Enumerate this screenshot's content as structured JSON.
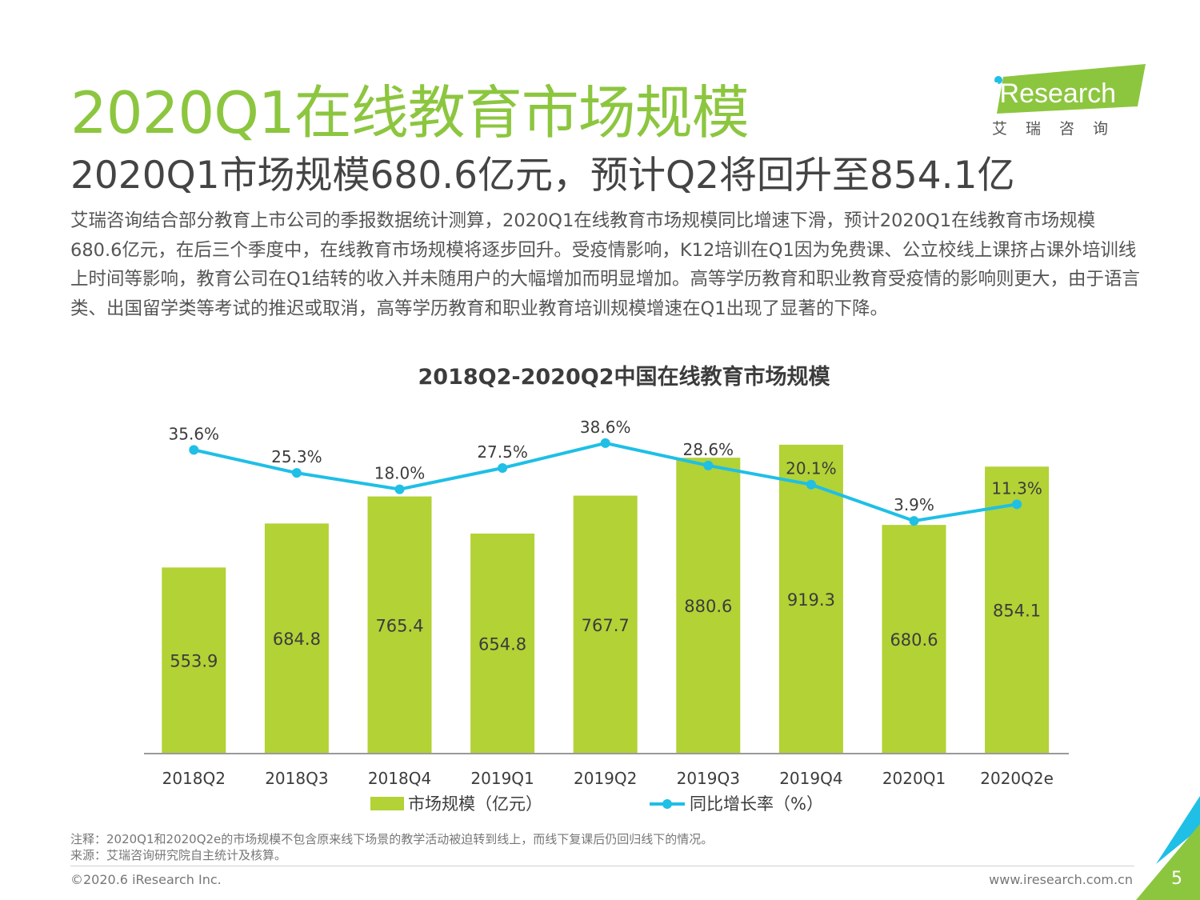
{
  "header": {
    "title": "2020Q1在线教育市场规模",
    "subtitle": "2020Q1市场规模680.6亿元，预计Q2将回升至854.1亿"
  },
  "logo": {
    "brand": "iResearch",
    "cn_name": "艾瑞咨询"
  },
  "body_text": "艾瑞咨询结合部分教育上市公司的季报数据统计测算，2020Q1在线教育市场规模同比增速下滑，预计2020Q1在线教育市场规模680.6亿元，在后三个季度中，在线教育市场规模将逐步回升。受疫情影响，K12培训在Q1因为免费课、公立校线上课挤占课外培训线上时间等影响，教育公司在Q1结转的收入并未随用户的大幅增加而明显增加。高等学历教育和职业教育受疫情的影响则更大，由于语言类、出国留学类等考试的推迟或取消，高等学历教育和职业教育培训规模增速在Q1出现了显著的下降。",
  "chart_data": {
    "type": "bar",
    "title": "2018Q2-2020Q2中国在线教育市场规模",
    "categories": [
      "2018Q2",
      "2018Q3",
      "2018Q4",
      "2019Q1",
      "2019Q2",
      "2019Q3",
      "2019Q4",
      "2020Q1",
      "2020Q2e"
    ],
    "series": [
      {
        "name": "市场规模（亿元）",
        "kind": "bar",
        "color": "#b2d235",
        "values": [
          553.9,
          684.8,
          765.4,
          654.8,
          767.7,
          880.6,
          919.3,
          680.6,
          854.1
        ]
      },
      {
        "name": "同比增长率（%）",
        "kind": "line",
        "color": "#1fbfe6",
        "values": [
          35.6,
          25.3,
          18.0,
          27.5,
          38.6,
          28.6,
          20.1,
          3.9,
          11.3
        ],
        "labels": [
          "35.6%",
          "25.3%",
          "18.0%",
          "27.5%",
          "38.6%",
          "28.6%",
          "20.1%",
          "3.9%",
          "11.3%"
        ]
      }
    ],
    "bar_labels": [
      "553.9",
      "684.8",
      "765.4",
      "654.8",
      "767.7",
      "880.6",
      "919.3",
      "680.6",
      "854.1"
    ],
    "ylim_bar": [
      0,
      1000
    ],
    "ylim_line": [
      -100,
      50
    ],
    "grid": false,
    "legend_position": "bottom"
  },
  "notes": {
    "note": "注释：2020Q1和2020Q2e的市场规模不包含原来线下场景的教学活动被迫转到线上，而线下复课后仍回归线下的情况。",
    "source": "来源：艾瑞咨询研究院自主统计及核算。"
  },
  "footer": {
    "copyright": "©2020.6 iResearch Inc.",
    "website": "www.iresearch.com.cn",
    "page_number": "5"
  },
  "colors": {
    "title": "#8cc63f",
    "bar": "#b2d235",
    "line": "#1fbfe6"
  }
}
